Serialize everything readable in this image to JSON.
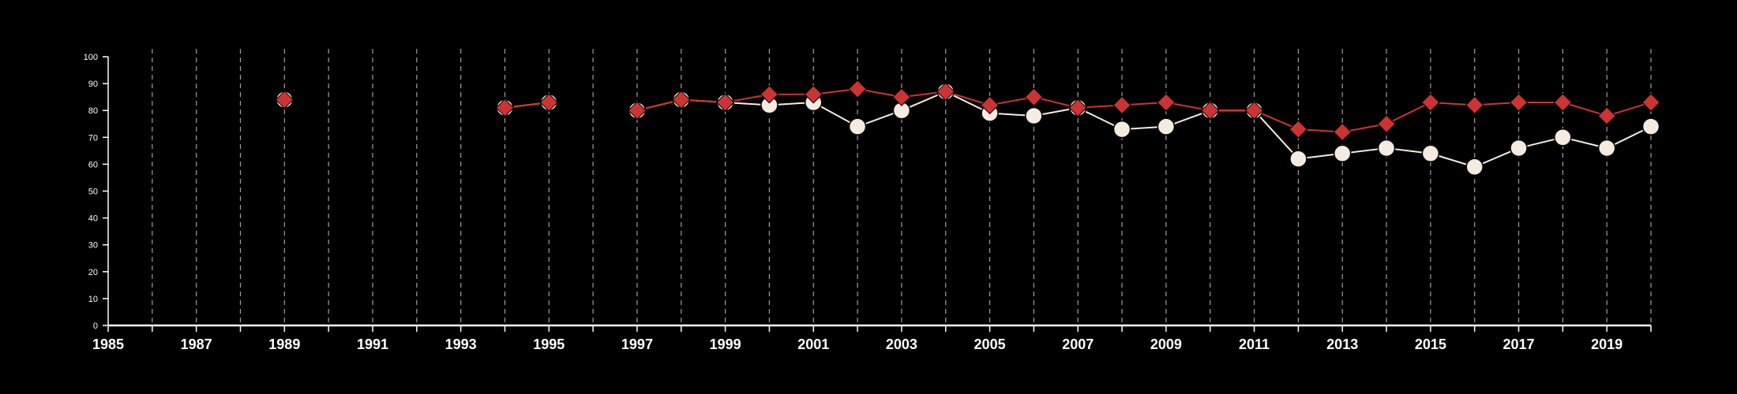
{
  "chart_data": {
    "type": "line",
    "x": [
      1989,
      1994,
      1995,
      1997,
      1998,
      1999,
      2000,
      2001,
      2002,
      2003,
      2004,
      2005,
      2006,
      2007,
      2008,
      2009,
      2010,
      2011,
      2012,
      2013,
      2014,
      2015,
      2016,
      2017,
      2018,
      2019,
      2020
    ],
    "series": [
      {
        "marker": "diamond",
        "color": "#cc3333",
        "values": [
          84,
          81,
          83,
          80,
          84,
          83,
          86,
          86,
          88,
          85,
          87,
          82,
          85,
          81,
          82,
          83,
          80,
          80,
          73,
          72,
          75,
          83,
          82,
          83,
          83,
          78,
          83
        ]
      },
      {
        "marker": "circle",
        "color": "#f5ebe0",
        "values": [
          84,
          81,
          83,
          80,
          84,
          83,
          82,
          83,
          74,
          80,
          87,
          79,
          78,
          81,
          73,
          74,
          80,
          80,
          62,
          64,
          66,
          64,
          59,
          66,
          70,
          66,
          74
        ]
      }
    ],
    "xlim": [
      1985,
      2020
    ],
    "ylim": [
      0,
      100
    ],
    "yticks": [
      0,
      10,
      20,
      30,
      40,
      50,
      60,
      70,
      80,
      90,
      100
    ],
    "xtick_labels": [
      "1985",
      "1987",
      "1989",
      "1991",
      "1993",
      "1995",
      "1997",
      "1999",
      "2001",
      "2003",
      "2005",
      "2007",
      "2009",
      "2011",
      "2013",
      "2015",
      "2017",
      "2019"
    ],
    "grid": "vertical-dashed",
    "colors": {
      "background": "#000000",
      "axis": "#ffffff",
      "grid": "#bbbbbb"
    }
  }
}
